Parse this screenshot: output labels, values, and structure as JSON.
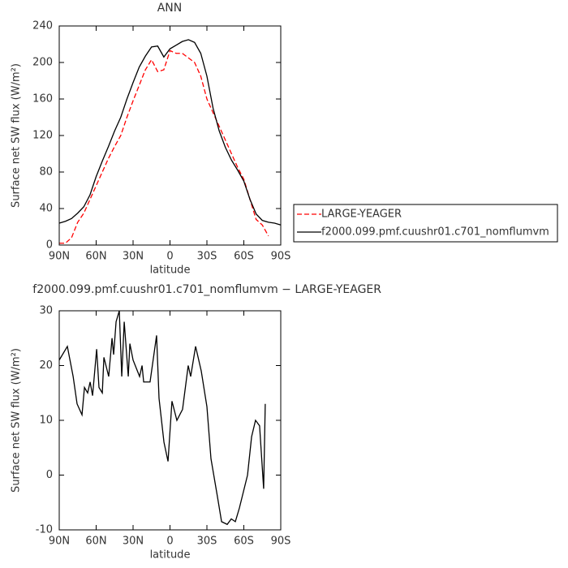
{
  "chart_data": [
    {
      "type": "line",
      "title": "ANN",
      "xlabel": "latitude",
      "ylabel": "Surface net SW flux (W/m²)",
      "x": [
        90,
        85,
        80,
        75,
        70,
        65,
        60,
        55,
        50,
        45,
        40,
        35,
        30,
        25,
        20,
        15,
        10,
        5,
        0,
        -5,
        -10,
        -15,
        -20,
        -25,
        -30,
        -35,
        -40,
        -45,
        -50,
        -55,
        -60,
        -65,
        -70,
        -75,
        -80,
        -85,
        -90
      ],
      "series": [
        {
          "name": "LARGE-YEAGER",
          "color": "#ff0000",
          "dash": true,
          "values": [
            2,
            2,
            8,
            25,
            35,
            50,
            65,
            80,
            95,
            108,
            120,
            140,
            158,
            175,
            192,
            203,
            190,
            192,
            213,
            210,
            210,
            205,
            200,
            185,
            160,
            145,
            130,
            115,
            100,
            85,
            72,
            50,
            28,
            22,
            10,
            null,
            null
          ]
        },
        {
          "name": "f2000.099.pmf.cuushr01.c701_nomflumvm",
          "color": "#000000",
          "dash": false,
          "values": [
            24,
            26,
            29,
            35,
            42,
            55,
            75,
            92,
            108,
            125,
            140,
            160,
            178,
            195,
            207,
            217,
            218,
            206,
            215,
            219,
            223,
            225,
            222,
            210,
            185,
            150,
            125,
            107,
            93,
            82,
            70,
            50,
            34,
            27,
            25,
            24,
            22
          ]
        }
      ],
      "xlim": [
        90,
        -90
      ],
      "xticks": [
        {
          "value": 90,
          "label": "90N"
        },
        {
          "value": 60,
          "label": "60N"
        },
        {
          "value": 30,
          "label": "30N"
        },
        0,
        {
          "value": -30,
          "label": "30S"
        },
        {
          "value": -60,
          "label": "60S"
        },
        {
          "value": -90,
          "label": "90S"
        }
      ],
      "ylim": [
        0,
        240
      ],
      "yticks": [
        0,
        40,
        80,
        120,
        160,
        200,
        240
      ],
      "legend": "right"
    },
    {
      "type": "line",
      "title": "f2000.099.pmf.cuushr01.c701_nomflumvm − LARGE-YEAGER",
      "xlabel": "latitude",
      "ylabel": "Surface net SW flux (W/m²)",
      "x": [
        90,
        83.4,
        78.7,
        75.5,
        71.5,
        69.5,
        66.9,
        64.9,
        62.9,
        59.6,
        57.7,
        55,
        53.7,
        49.8,
        47.1,
        45.8,
        43.8,
        41.2,
        39.2,
        37.2,
        33.9,
        32.6,
        30,
        24.7,
        22.7,
        21.4,
        16.2,
        10.9,
        8.9,
        4.9,
        1.6,
        -1.6,
        -5.6,
        -10.2,
        -14.8,
        -16.8,
        -20.8,
        -25.4,
        -30,
        -33.3,
        -38.6,
        -41.9,
        -46.5,
        -49.8,
        -53.1,
        -56.4,
        -63,
        -66.3,
        -69.5,
        -72.8,
        -76.1,
        -77.4
      ],
      "values": [
        21,
        23.5,
        18,
        13,
        11,
        16,
        15,
        17,
        14.5,
        23,
        16,
        15,
        21.5,
        18,
        25,
        22,
        28,
        30,
        18,
        28,
        18,
        24,
        21,
        18,
        20,
        17,
        17,
        25.5,
        14,
        6,
        2.5,
        13.5,
        10,
        12,
        20,
        18,
        23.5,
        19,
        12.5,
        3,
        -4,
        -8.5,
        -9,
        -8,
        -8.5,
        -6,
        0,
        7,
        10,
        9,
        -2.5,
        13
      ],
      "color": "#000000",
      "xlim": [
        90,
        -90
      ],
      "xticks": [
        {
          "value": 90,
          "label": "90N"
        },
        {
          "value": 60,
          "label": "60N"
        },
        {
          "value": 30,
          "label": "30N"
        },
        0,
        {
          "value": -30,
          "label": "30S"
        },
        {
          "value": -60,
          "label": "60S"
        },
        {
          "value": -90,
          "label": "90S"
        }
      ],
      "ylim": [
        -10,
        30
      ],
      "yticks": [
        -10,
        0,
        10,
        20,
        30
      ]
    }
  ]
}
